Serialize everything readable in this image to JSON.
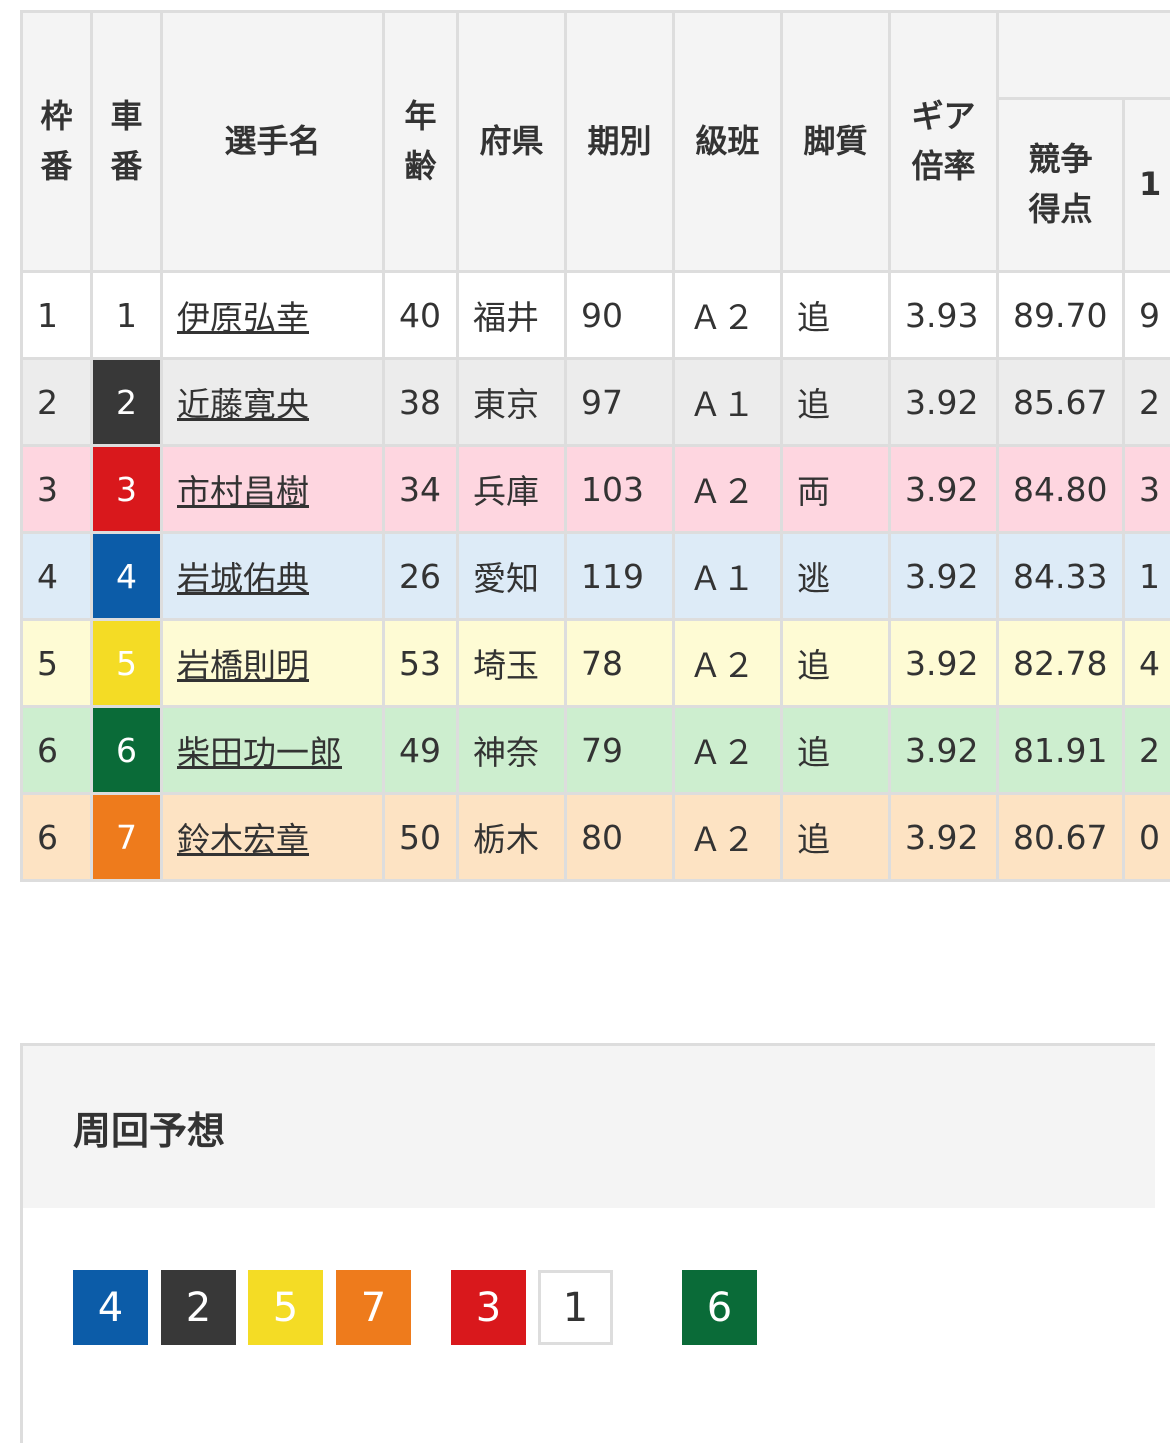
{
  "table": {
    "headers": {
      "waku": "枠\n番",
      "car": "車\n番",
      "name": "選手名",
      "age": "年\n齢",
      "pref": "府県",
      "term": "期別",
      "class": "級班",
      "style": "脚質",
      "gear": "ギア\n倍率",
      "score": "競争\n得点",
      "cut": "1"
    },
    "rows": [
      {
        "waku": "1",
        "car": "1",
        "name": "伊原弘幸",
        "age": "40",
        "pref": "福井",
        "term": "90",
        "class": "Ａ２",
        "style": "追",
        "gear": "3.93",
        "score": "89.70",
        "cut": "9",
        "bg": "#ffffff",
        "car_bg": "#ffffff",
        "car_fg": "#333333"
      },
      {
        "waku": "2",
        "car": "2",
        "name": "近藤寛央",
        "age": "38",
        "pref": "東京",
        "term": "97",
        "class": "Ａ１",
        "style": "追",
        "gear": "3.92",
        "score": "85.67",
        "cut": "2",
        "bg": "#ececec",
        "car_bg": "#383838",
        "car_fg": "#ffffff"
      },
      {
        "waku": "3",
        "car": "3",
        "name": "市村昌樹",
        "age": "34",
        "pref": "兵庫",
        "term": "103",
        "class": "Ａ２",
        "style": "両",
        "gear": "3.92",
        "score": "84.80",
        "cut": "3",
        "bg": "#fed6e0",
        "car_bg": "#d9181c",
        "car_fg": "#ffffff"
      },
      {
        "waku": "4",
        "car": "4",
        "name": "岩城佑典",
        "age": "26",
        "pref": "愛知",
        "term": "119",
        "class": "Ａ１",
        "style": "逃",
        "gear": "3.92",
        "score": "84.33",
        "cut": "1",
        "bg": "#ddebf7",
        "car_bg": "#0c5ca8",
        "car_fg": "#ffffff"
      },
      {
        "waku": "5",
        "car": "5",
        "name": "岩橋則明",
        "age": "53",
        "pref": "埼玉",
        "term": "78",
        "class": "Ａ２",
        "style": "追",
        "gear": "3.92",
        "score": "82.78",
        "cut": "4",
        "bg": "#fefbd4",
        "car_bg": "#f4dc25",
        "car_fg": "#ffffff"
      },
      {
        "waku": "6",
        "car": "6",
        "name": "柴田功一郎",
        "age": "49",
        "pref": "神奈",
        "term": "79",
        "class": "Ａ２",
        "style": "追",
        "gear": "3.92",
        "score": "81.91",
        "cut": "2",
        "bg": "#cdeecf",
        "car_bg": "#0a6b38",
        "car_fg": "#ffffff"
      },
      {
        "waku": "6",
        "car": "7",
        "name": "鈴木宏章",
        "age": "50",
        "pref": "栃木",
        "term": "80",
        "class": "Ａ２",
        "style": "追",
        "gear": "3.92",
        "score": "80.67",
        "cut": "0",
        "bg": "#fde3c3",
        "car_bg": "#ee7b1c",
        "car_fg": "#ffffff"
      }
    ]
  },
  "prediction": {
    "title": "周回予想",
    "badges": [
      {
        "num": "4",
        "bg": "#0c5ca8",
        "fg": "#ffffff"
      },
      {
        "num": "2",
        "bg": "#383838",
        "fg": "#ffffff"
      },
      {
        "num": "5",
        "bg": "#f4dc25",
        "fg": "#ffffff"
      },
      {
        "num": "7",
        "bg": "#ee7b1c",
        "fg": "#ffffff"
      },
      {
        "num": "3",
        "bg": "#d9181c",
        "fg": "#ffffff"
      },
      {
        "num": "1",
        "bg": "#ffffff",
        "fg": "#333333"
      },
      {
        "num": "6",
        "bg": "#0a6b38",
        "fg": "#ffffff"
      }
    ]
  }
}
